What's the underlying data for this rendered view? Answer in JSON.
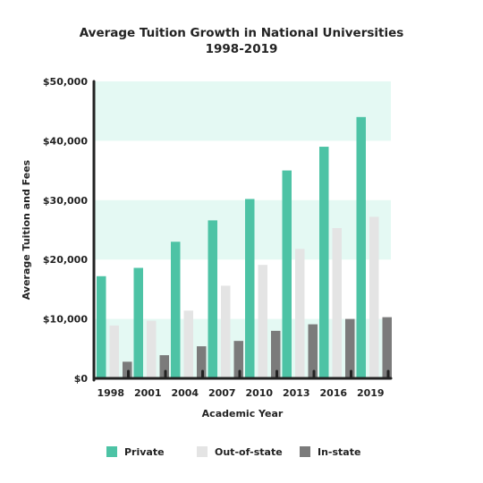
{
  "chart_data": {
    "type": "bar",
    "title_line1": "Average Tuition Growth in National Universities",
    "title_line2": "1998-2019",
    "xlabel": "Academic Year",
    "ylabel": "Average Tuition and Fees",
    "categories": [
      "1998",
      "2001",
      "2004",
      "2007",
      "2010",
      "2013",
      "2016",
      "2019"
    ],
    "ylim": [
      0,
      50000
    ],
    "yticks": [
      0,
      10000,
      20000,
      30000,
      40000,
      50000
    ],
    "ytick_labels": [
      "$0",
      "$10,000",
      "$20,000",
      "$30,000",
      "$40,000",
      "$50,000"
    ],
    "series": [
      {
        "name": "Private",
        "color": "#4dc3a5",
        "values": [
          17200,
          18600,
          23000,
          26600,
          30200,
          35000,
          39000,
          44000
        ]
      },
      {
        "name": "Out-of-state",
        "color": "#e4e4e4",
        "values": [
          8900,
          9700,
          11400,
          15600,
          19100,
          21800,
          25300,
          27200
        ]
      },
      {
        "name": "In-state",
        "color": "#7b7b7b",
        "values": [
          2800,
          3900,
          5400,
          6300,
          8000,
          9100,
          10000,
          10300
        ]
      }
    ],
    "band_color": "#e4f9f3",
    "grid": false,
    "legend_position": "bottom"
  }
}
